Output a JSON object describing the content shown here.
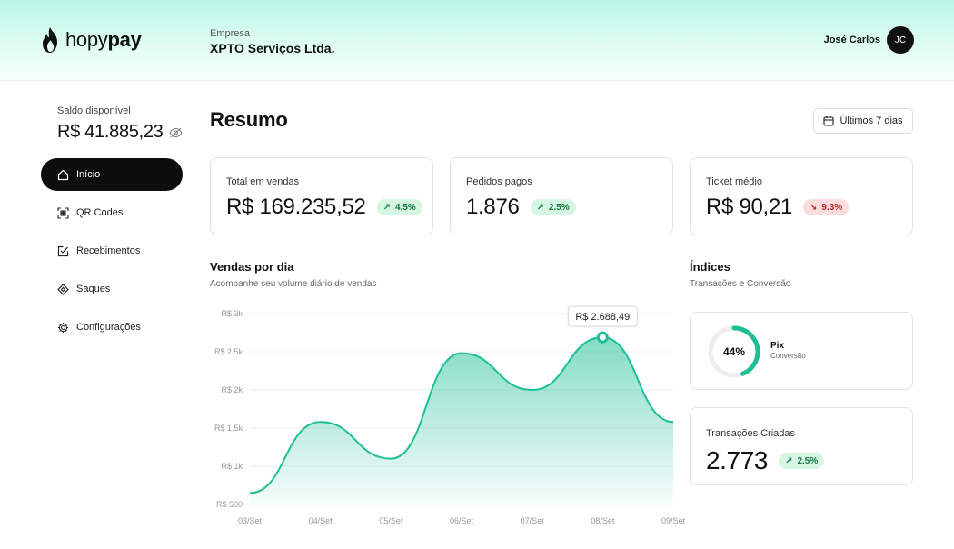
{
  "brand": {
    "logo_light": "hopy",
    "logo_bold": "pay"
  },
  "company": {
    "label": "Empresa",
    "name": "XPTO Serviços Ltda."
  },
  "user": {
    "name": "José Carlos",
    "initials": "JC"
  },
  "balance": {
    "label": "Saldo disponível",
    "value": "R$ 41.885,23",
    "icon": "eye-slash-icon"
  },
  "nav": [
    {
      "label": "Início",
      "icon": "home-icon",
      "active": true
    },
    {
      "label": "QR Codes",
      "icon": "qr-code-icon",
      "active": false
    },
    {
      "label": "Recebimentos",
      "icon": "receipt-check-icon",
      "active": false
    },
    {
      "label": "Saques",
      "icon": "withdraw-icon",
      "active": false
    },
    {
      "label": "Configurações",
      "icon": "gear-icon",
      "active": false
    }
  ],
  "page": {
    "title": "Resumo",
    "date_range": "Últimos 7 dias"
  },
  "kpis": [
    {
      "label": "Total em vendas",
      "value": "R$ 169.235,52",
      "change": "4.5%",
      "trend": "up"
    },
    {
      "label": "Pedidos pagos",
      "value": "1.876",
      "change": "2.5%",
      "trend": "up"
    },
    {
      "label": "Ticket médio",
      "value": "R$ 90,21",
      "change": "9.3%",
      "trend": "down"
    }
  ],
  "sales_section": {
    "title": "Vendas por dia",
    "subtitle": "Acompanhe seu volume diário de vendas"
  },
  "indices_section": {
    "title": "Índices",
    "subtitle": "Transações e Conversão"
  },
  "conversion": {
    "percent": "44%",
    "fraction": 0.44,
    "title": "Pix",
    "subtitle": "Conversão"
  },
  "transactions": {
    "label": "Transações Criadas",
    "value": "2.773",
    "change": "2.5%",
    "trend": "up"
  },
  "colors": {
    "accent": "#1dbf94",
    "accent_light": "#b9f7e4",
    "dark": "#0d0d0d",
    "up": "#137a45",
    "down": "#b32828"
  },
  "chart_data": {
    "type": "area",
    "x": [
      "03/Set",
      "04/Set",
      "05/Set",
      "06/Set",
      "07/Set",
      "08/Set",
      "09/Set"
    ],
    "series": [
      {
        "values": [
          650,
          1580,
          1100,
          2480,
          2000,
          2688.49,
          1580
        ]
      }
    ],
    "y_ticks": [
      "R$ 500",
      "R$ 1k",
      "R$ 1.5k",
      "R$ 2k",
      "R$ 2.5k",
      "R$ 3k"
    ],
    "ylim": [
      500,
      3000
    ],
    "tooltip": {
      "label": "R$ 2.688,49",
      "index": 5
    },
    "grid": true
  }
}
